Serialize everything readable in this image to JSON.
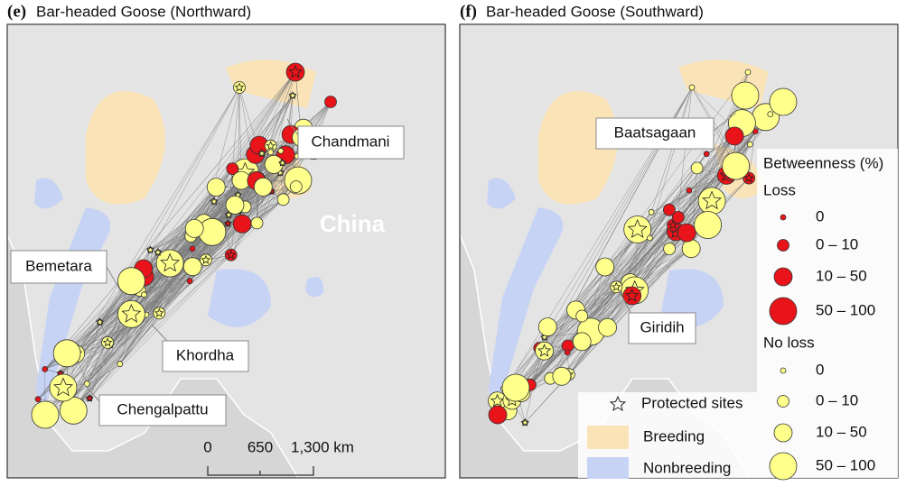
{
  "panels": [
    {
      "label": "(e)",
      "title": "Bar-headed Goose (Northward)",
      "place_labels": [
        "Chandmani",
        "Bemetara",
        "Khordha",
        "Chengalpattu"
      ],
      "map_label": "China",
      "scale_bar": [
        "0",
        "650",
        "1,300 km"
      ]
    },
    {
      "label": "(f)",
      "title": "Bar-headed Goose (Southward)",
      "place_labels": [
        "Baatsagaan",
        "Giridih"
      ]
    }
  ],
  "legend": {
    "title": "Betweenness (%)",
    "loss": {
      "title": "Loss",
      "classes": [
        "0",
        "0 – 10",
        "10 – 50",
        "50 – 100"
      ]
    },
    "no_loss": {
      "title": "No loss",
      "classes": [
        "0",
        "0 – 10",
        "10 – 50",
        "50 – 100"
      ]
    },
    "protected": "Protected sites",
    "breeding": "Breeding",
    "nonbreeding": "Nonbreeding"
  }
}
